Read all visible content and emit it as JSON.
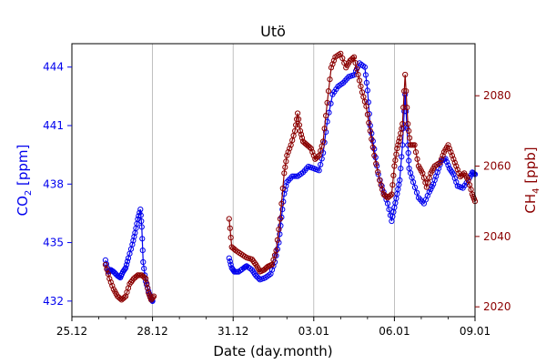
{
  "chart_data": {
    "type": "line",
    "title": "Utö",
    "xlabel": "Date (day.month)",
    "x_ticks": [
      "25.12",
      "28.12",
      "31.12",
      "03.01",
      "06.01",
      "09.01"
    ],
    "xlim_days": [
      0,
      15
    ],
    "grid": "vertical",
    "ylabel_left": {
      "base": "CO",
      "sub": "2",
      "unit": " [ppm]"
    },
    "ylabel_right": {
      "base": "CH",
      "sub": "4",
      "unit": " [ppb]"
    },
    "ylim_left": [
      431.2,
      445.2
    ],
    "yticks_left": [
      432,
      435,
      438,
      441,
      444
    ],
    "ylim_right": [
      2017.2,
      2094.8
    ],
    "yticks_right": [
      2020,
      2040,
      2060,
      2080
    ],
    "colors": {
      "left_axis": "#0000ee",
      "right_axis": "#8b0000",
      "grid": "#b0b0b0"
    },
    "series": [
      {
        "name": "CO2",
        "axis": "left",
        "color": "#0000ee",
        "segments": [
          [
            [
              1.25,
              434.1
            ],
            [
              1.35,
              433.5
            ],
            [
              1.45,
              433.6
            ],
            [
              1.55,
              433.5
            ],
            [
              1.7,
              433.3
            ],
            [
              1.8,
              433.2
            ],
            [
              1.9,
              433.5
            ],
            [
              2.0,
              433.7
            ],
            [
              2.1,
              434.2
            ],
            [
              2.25,
              434.9
            ],
            [
              2.35,
              435.5
            ],
            [
              2.45,
              436.2
            ],
            [
              2.55,
              436.7
            ],
            [
              2.6,
              435.8
            ],
            [
              2.65,
              434.0
            ],
            [
              2.75,
              433.0
            ],
            [
              2.85,
              432.5
            ],
            [
              2.95,
              432.1
            ],
            [
              3.0,
              432.0
            ]
          ],
          [
            [
              5.85,
              434.2
            ],
            [
              5.95,
              433.7
            ],
            [
              6.05,
              433.5
            ],
            [
              6.2,
              433.5
            ],
            [
              6.4,
              433.7
            ],
            [
              6.5,
              433.8
            ],
            [
              6.7,
              433.6
            ],
            [
              6.85,
              433.3
            ],
            [
              7.0,
              433.1
            ],
            [
              7.2,
              433.2
            ],
            [
              7.4,
              433.4
            ],
            [
              7.55,
              434.0
            ],
            [
              7.7,
              435.0
            ],
            [
              7.8,
              436.3
            ],
            [
              7.9,
              437.5
            ],
            [
              8.0,
              438.1
            ],
            [
              8.2,
              438.4
            ],
            [
              8.4,
              438.4
            ],
            [
              8.6,
              438.6
            ],
            [
              8.8,
              438.9
            ],
            [
              9.0,
              438.8
            ],
            [
              9.2,
              438.7
            ],
            [
              9.35,
              439.6
            ],
            [
              9.5,
              441.2
            ],
            [
              9.7,
              442.6
            ],
            [
              9.9,
              443.0
            ],
            [
              10.1,
              443.2
            ],
            [
              10.3,
              443.5
            ],
            [
              10.5,
              443.6
            ],
            [
              10.7,
              444.2
            ],
            [
              10.9,
              444.0
            ],
            [
              11.0,
              442.8
            ],
            [
              11.1,
              441.0
            ],
            [
              11.25,
              439.8
            ],
            [
              11.4,
              438.5
            ],
            [
              11.6,
              437.6
            ],
            [
              11.75,
              437.0
            ],
            [
              11.9,
              436.1
            ],
            [
              12.0,
              436.8
            ],
            [
              12.1,
              437.5
            ],
            [
              12.2,
              438.2
            ],
            [
              12.3,
              440.0
            ],
            [
              12.4,
              442.6
            ],
            [
              12.5,
              440.0
            ],
            [
              12.55,
              438.8
            ],
            [
              12.7,
              438.1
            ],
            [
              12.9,
              437.3
            ],
            [
              13.1,
              437.0
            ],
            [
              13.3,
              437.6
            ],
            [
              13.45,
              438.0
            ],
            [
              13.6,
              438.6
            ],
            [
              13.75,
              439.2
            ],
            [
              13.9,
              439.3
            ],
            [
              14.05,
              438.8
            ],
            [
              14.2,
              438.5
            ],
            [
              14.35,
              437.9
            ],
            [
              14.55,
              437.8
            ],
            [
              14.75,
              438.2
            ],
            [
              14.9,
              438.6
            ],
            [
              15.0,
              438.5
            ]
          ]
        ]
      },
      {
        "name": "CH4",
        "axis": "right",
        "color": "#8b0000",
        "segments": [
          [
            [
              1.25,
              2032.0
            ],
            [
              1.4,
              2028.0
            ],
            [
              1.55,
              2025.0
            ],
            [
              1.7,
              2023.0
            ],
            [
              1.85,
              2022.0
            ],
            [
              2.0,
              2023.0
            ],
            [
              2.15,
              2026.5
            ],
            [
              2.3,
              2028.0
            ],
            [
              2.45,
              2029.0
            ],
            [
              2.6,
              2029.0
            ],
            [
              2.75,
              2028.0
            ],
            [
              2.85,
              2024.0
            ],
            [
              2.95,
              2022.0
            ],
            [
              3.05,
              2023.0
            ]
          ],
          [
            [
              5.85,
              2045.0
            ],
            [
              5.95,
              2037.0
            ],
            [
              6.1,
              2036.0
            ],
            [
              6.3,
              2035.0
            ],
            [
              6.5,
              2034.0
            ],
            [
              6.7,
              2033.5
            ],
            [
              6.85,
              2032.0
            ],
            [
              7.0,
              2030.0
            ],
            [
              7.15,
              2030.5
            ],
            [
              7.3,
              2031.5
            ],
            [
              7.45,
              2032.0
            ],
            [
              7.6,
              2036.0
            ],
            [
              7.75,
              2045.0
            ],
            [
              7.9,
              2058.0
            ],
            [
              8.0,
              2063.0
            ],
            [
              8.15,
              2066.0
            ],
            [
              8.3,
              2070.0
            ],
            [
              8.4,
              2075.0
            ],
            [
              8.5,
              2070.0
            ],
            [
              8.6,
              2067.0
            ],
            [
              8.75,
              2066.0
            ],
            [
              8.9,
              2065.0
            ],
            [
              9.05,
              2062.0
            ],
            [
              9.2,
              2063.0
            ],
            [
              9.35,
              2067.0
            ],
            [
              9.5,
              2078.0
            ],
            [
              9.65,
              2088.0
            ],
            [
              9.8,
              2091.0
            ],
            [
              10.0,
              2092.0
            ],
            [
              10.2,
              2088.0
            ],
            [
              10.35,
              2090.0
            ],
            [
              10.5,
              2091.0
            ],
            [
              10.65,
              2086.0
            ],
            [
              10.8,
              2081.0
            ],
            [
              10.95,
              2077.0
            ],
            [
              11.1,
              2070.0
            ],
            [
              11.25,
              2063.0
            ],
            [
              11.45,
              2056.0
            ],
            [
              11.6,
              2052.0
            ],
            [
              11.75,
              2051.0
            ],
            [
              11.9,
              2052.0
            ],
            [
              12.0,
              2060.0
            ],
            [
              12.1,
              2065.0
            ],
            [
              12.2,
              2068.0
            ],
            [
              12.3,
              2072.0
            ],
            [
              12.4,
              2086.0
            ],
            [
              12.5,
              2072.0
            ],
            [
              12.6,
              2066.0
            ],
            [
              12.75,
              2066.0
            ],
            [
              12.9,
              2060.0
            ],
            [
              13.05,
              2058.0
            ],
            [
              13.2,
              2054.0
            ],
            [
              13.35,
              2058.0
            ],
            [
              13.5,
              2060.0
            ],
            [
              13.7,
              2061.0
            ],
            [
              13.85,
              2064.0
            ],
            [
              14.0,
              2066.0
            ],
            [
              14.15,
              2063.0
            ],
            [
              14.3,
              2060.0
            ],
            [
              14.45,
              2057.0
            ],
            [
              14.6,
              2058.0
            ],
            [
              14.75,
              2056.0
            ],
            [
              14.9,
              2052.0
            ],
            [
              15.0,
              2050.0
            ]
          ]
        ]
      }
    ]
  }
}
